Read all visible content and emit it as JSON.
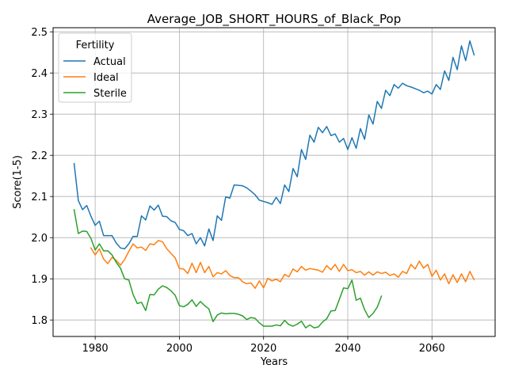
{
  "chart_data": {
    "type": "line",
    "title": "Average_JOB_SHORT_HOURS_of_Black_Pop",
    "xlabel": "Years",
    "ylabel": "Score(1-5)",
    "xlim": [
      1970,
      2075
    ],
    "ylim": [
      1.76,
      2.51
    ],
    "xticks": [
      1980,
      2000,
      2020,
      2040,
      2060
    ],
    "yticks": [
      1.8,
      1.9,
      2.0,
      2.1,
      2.2,
      2.3,
      2.4,
      2.5
    ],
    "grid": true,
    "legend": {
      "title": "Fertility",
      "placement": "upper-left"
    },
    "series": [
      {
        "name": "Actual",
        "color": "#1f77b4",
        "x": [
          1975,
          1976,
          1977,
          1978,
          1979,
          1980,
          1981,
          1982,
          1983,
          1984,
          1985,
          1986,
          1987,
          1988,
          1989,
          1990,
          1991,
          1992,
          1993,
          1994,
          1995,
          1996,
          1997,
          1998,
          1999,
          2000,
          2001,
          2002,
          2003,
          2004,
          2005,
          2006,
          2007,
          2008,
          2009,
          2010,
          2011,
          2012,
          2013,
          2014,
          2015,
          2016,
          2017,
          2018,
          2019,
          2020,
          2021,
          2022,
          2023,
          2024,
          2025,
          2026,
          2027,
          2028,
          2029,
          2030,
          2031,
          2032,
          2033,
          2034,
          2035,
          2036,
          2037,
          2038,
          2039,
          2040,
          2041,
          2042,
          2043,
          2044,
          2045,
          2046,
          2047,
          2048,
          2049,
          2050,
          2051,
          2052,
          2053,
          2054,
          2055,
          2056,
          2057,
          2058,
          2059,
          2060,
          2061,
          2062,
          2063,
          2064,
          2065,
          2066,
          2067,
          2068,
          2069,
          2070
        ],
        "values": [
          2.18,
          2.09,
          2.068,
          2.078,
          2.052,
          2.03,
          2.04,
          2.005,
          2.005,
          2.005,
          1.987,
          1.975,
          1.973,
          1.985,
          2.003,
          2.003,
          2.053,
          2.043,
          2.077,
          2.067,
          2.079,
          2.052,
          2.051,
          2.041,
          2.037,
          2.02,
          2.017,
          2.005,
          2.01,
          1.985,
          2.0,
          1.98,
          2.021,
          1.993,
          2.053,
          2.042,
          2.099,
          2.096,
          2.128,
          2.127,
          2.126,
          2.121,
          2.113,
          2.104,
          2.091,
          2.088,
          2.085,
          2.081,
          2.098,
          2.083,
          2.128,
          2.112,
          2.168,
          2.148,
          2.214,
          2.19,
          2.249,
          2.232,
          2.268,
          2.255,
          2.27,
          2.248,
          2.252,
          2.232,
          2.241,
          2.214,
          2.243,
          2.217,
          2.265,
          2.239,
          2.298,
          2.276,
          2.331,
          2.314,
          2.358,
          2.345,
          2.372,
          2.363,
          2.375,
          2.369,
          2.366,
          2.362,
          2.358,
          2.352,
          2.356,
          2.349,
          2.372,
          2.36,
          2.405,
          2.382,
          2.438,
          2.408,
          2.466,
          2.43,
          2.478,
          2.444
        ]
      },
      {
        "name": "Ideal",
        "color": "#ff7f0e",
        "x": [
          1979,
          1980,
          1981,
          1982,
          1983,
          1984,
          1985,
          1986,
          1987,
          1988,
          1989,
          1990,
          1991,
          1992,
          1993,
          1994,
          1995,
          1996,
          1997,
          1998,
          1999,
          2000,
          2001,
          2002,
          2003,
          2004,
          2005,
          2006,
          2007,
          2008,
          2009,
          2010,
          2011,
          2012,
          2013,
          2014,
          2015,
          2016,
          2017,
          2018,
          2019,
          2020,
          2021,
          2022,
          2023,
          2024,
          2025,
          2026,
          2027,
          2028,
          2029,
          2030,
          2031,
          2032,
          2033,
          2034,
          2035,
          2036,
          2037,
          2038,
          2039,
          2040,
          2041,
          2042,
          2043,
          2044,
          2045,
          2046,
          2047,
          2048,
          2049,
          2050,
          2051,
          2052,
          2053,
          2054,
          2055,
          2056,
          2057,
          2058,
          2059,
          2060,
          2061,
          2062,
          2063,
          2064,
          2065,
          2066,
          2067,
          2068,
          2069,
          2070
        ],
        "values": [
          1.975,
          1.958,
          1.973,
          1.948,
          1.937,
          1.952,
          1.945,
          1.933,
          1.947,
          1.967,
          1.985,
          1.975,
          1.977,
          1.969,
          1.985,
          1.983,
          1.993,
          1.99,
          1.973,
          1.962,
          1.951,
          1.925,
          1.924,
          1.913,
          1.938,
          1.915,
          1.94,
          1.915,
          1.93,
          1.905,
          1.915,
          1.912,
          1.92,
          1.908,
          1.903,
          1.903,
          1.893,
          1.888,
          1.89,
          1.877,
          1.895,
          1.878,
          1.901,
          1.895,
          1.899,
          1.893,
          1.911,
          1.905,
          1.924,
          1.917,
          1.93,
          1.921,
          1.925,
          1.923,
          1.921,
          1.916,
          1.932,
          1.922,
          1.935,
          1.918,
          1.935,
          1.92,
          1.922,
          1.915,
          1.918,
          1.909,
          1.917,
          1.909,
          1.917,
          1.913,
          1.916,
          1.908,
          1.912,
          1.904,
          1.918,
          1.913,
          1.935,
          1.924,
          1.943,
          1.926,
          1.935,
          1.906,
          1.921,
          1.897,
          1.912,
          1.888,
          1.91,
          1.891,
          1.912,
          1.893,
          1.918,
          1.898
        ]
      },
      {
        "name": "Sterile",
        "color": "#2ca02c",
        "x": [
          1975,
          1976,
          1977,
          1978,
          1979,
          1980,
          1981,
          1982,
          1983,
          1984,
          1985,
          1986,
          1987,
          1988,
          1989,
          1990,
          1991,
          1992,
          1993,
          1994,
          1995,
          1996,
          1997,
          1998,
          1999,
          2000,
          2001,
          2002,
          2003,
          2004,
          2005,
          2006,
          2007,
          2008,
          2009,
          2010,
          2011,
          2012,
          2013,
          2014,
          2015,
          2016,
          2017,
          2018,
          2019,
          2020,
          2021,
          2022,
          2023,
          2024,
          2025,
          2026,
          2027,
          2028,
          2029,
          2030,
          2031,
          2032,
          2033,
          2034,
          2035,
          2036,
          2037,
          2038,
          2039,
          2040,
          2041,
          2042,
          2043,
          2044,
          2045,
          2046,
          2047,
          2048
        ],
        "values": [
          2.068,
          2.01,
          2.016,
          2.015,
          1.998,
          1.97,
          1.985,
          1.968,
          1.968,
          1.958,
          1.94,
          1.926,
          1.9,
          1.897,
          1.862,
          1.84,
          1.843,
          1.823,
          1.862,
          1.861,
          1.875,
          1.883,
          1.879,
          1.871,
          1.86,
          1.835,
          1.832,
          1.838,
          1.849,
          1.833,
          1.845,
          1.835,
          1.827,
          1.796,
          1.812,
          1.817,
          1.815,
          1.816,
          1.816,
          1.814,
          1.81,
          1.801,
          1.806,
          1.804,
          1.793,
          1.785,
          1.785,
          1.785,
          1.788,
          1.786,
          1.799,
          1.789,
          1.785,
          1.79,
          1.797,
          1.781,
          1.788,
          1.781,
          1.783,
          1.795,
          1.803,
          1.822,
          1.823,
          1.85,
          1.878,
          1.876,
          1.897,
          1.848,
          1.853,
          1.825,
          1.806,
          1.816,
          1.831,
          1.858
        ]
      }
    ]
  }
}
